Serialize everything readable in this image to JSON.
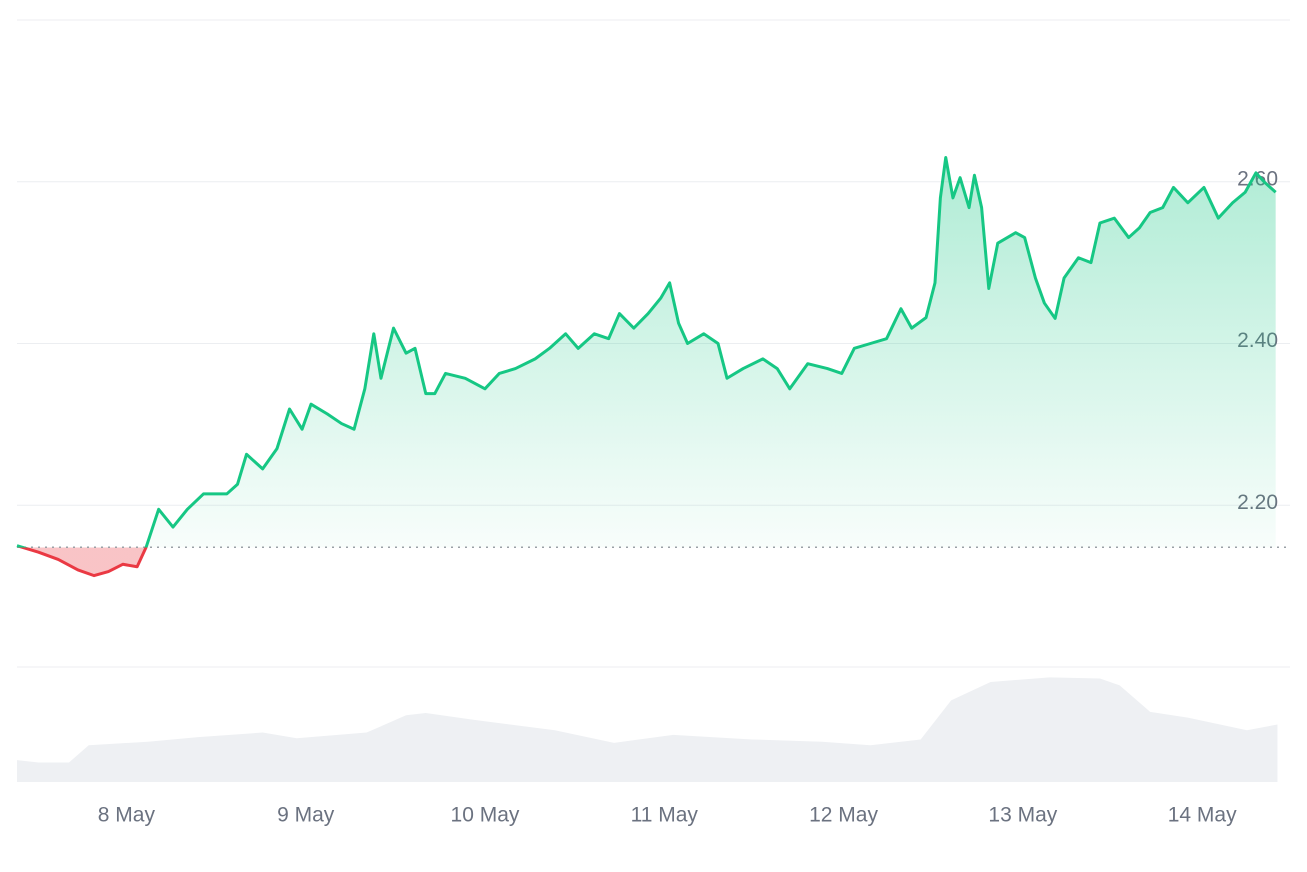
{
  "chart_data": {
    "type": "line",
    "xlim": [
      7.39,
      14.49
    ],
    "xticks": [
      {
        "value": 8,
        "label": "8 May"
      },
      {
        "value": 9,
        "label": "9 May"
      },
      {
        "value": 10,
        "label": "10 May"
      },
      {
        "value": 11,
        "label": "11 May"
      },
      {
        "value": 12,
        "label": "12 May"
      },
      {
        "value": 13,
        "label": "13 May"
      },
      {
        "value": 14,
        "label": "14 May"
      }
    ],
    "ylim": [
      2.0,
      2.8
    ],
    "yticks": [
      {
        "value": 2.2,
        "label": "2.20"
      },
      {
        "value": 2.4,
        "label": "2.40"
      },
      {
        "value": 2.6,
        "label": "2.60"
      }
    ],
    "grid": true,
    "baseline": 2.148,
    "up_color": "#16c784",
    "down_color": "#ea3943",
    "x": [
      7.39,
      7.51,
      7.62,
      7.73,
      7.82,
      7.9,
      7.98,
      8.06,
      8.11,
      8.18,
      8.26,
      8.34,
      8.43,
      8.56,
      8.62,
      8.67,
      8.76,
      8.84,
      8.91,
      8.98,
      9.03,
      9.12,
      9.2,
      9.27,
      9.33,
      9.38,
      9.42,
      9.49,
      9.56,
      9.61,
      9.67,
      9.72,
      9.78,
      9.89,
      10.0,
      10.08,
      10.17,
      10.28,
      10.36,
      10.45,
      10.52,
      10.61,
      10.69,
      10.75,
      10.83,
      10.91,
      10.98,
      11.03,
      11.08,
      11.13,
      11.22,
      11.3,
      11.35,
      11.44,
      11.55,
      11.63,
      11.7,
      11.8,
      11.91,
      11.99,
      12.06,
      12.15,
      12.24,
      12.32,
      12.38,
      12.46,
      12.51,
      12.54,
      12.57,
      12.61,
      12.65,
      12.7,
      12.73,
      12.77,
      12.81,
      12.86,
      12.96,
      13.01,
      13.07,
      13.12,
      13.18,
      13.23,
      13.31,
      13.38,
      13.43,
      13.51,
      13.59,
      13.65,
      13.71,
      13.78,
      13.84,
      13.92,
      14.01,
      14.09,
      14.17,
      14.24,
      14.3,
      14.35,
      14.41
    ],
    "values": [
      2.15,
      2.142,
      2.133,
      2.12,
      2.113,
      2.118,
      2.127,
      2.124,
      2.148,
      2.195,
      2.173,
      2.195,
      2.214,
      2.214,
      2.226,
      2.263,
      2.245,
      2.27,
      2.319,
      2.294,
      2.325,
      2.313,
      2.301,
      2.294,
      2.344,
      2.412,
      2.357,
      2.419,
      2.388,
      2.394,
      2.338,
      2.338,
      2.363,
      2.357,
      2.344,
      2.363,
      2.369,
      2.381,
      2.394,
      2.412,
      2.394,
      2.412,
      2.406,
      2.437,
      2.419,
      2.437,
      2.456,
      2.475,
      2.425,
      2.4,
      2.412,
      2.4,
      2.357,
      2.369,
      2.381,
      2.369,
      2.344,
      2.375,
      2.369,
      2.363,
      2.394,
      2.4,
      2.406,
      2.443,
      2.419,
      2.432,
      2.475,
      2.58,
      2.63,
      2.58,
      2.605,
      2.568,
      2.608,
      2.568,
      2.468,
      2.524,
      2.537,
      2.531,
      2.481,
      2.45,
      2.431,
      2.481,
      2.506,
      2.5,
      2.549,
      2.555,
      2.531,
      2.543,
      2.562,
      2.568,
      2.593,
      2.574,
      2.593,
      2.555,
      2.574,
      2.587,
      2.611,
      2.599,
      2.587
    ],
    "volume": {
      "color": "#eef0f3",
      "ylim": [
        0,
        100
      ],
      "x": [
        7.39,
        7.51,
        7.68,
        7.79,
        8.12,
        8.4,
        8.76,
        8.95,
        9.34,
        9.56,
        9.67,
        9.94,
        10.39,
        10.72,
        11.05,
        11.49,
        11.88,
        12.15,
        12.43,
        12.6,
        12.82,
        13.15,
        13.43,
        13.54,
        13.71,
        13.92,
        14.25,
        14.42
      ],
      "values": [
        19,
        17,
        17,
        32,
        35,
        39,
        43,
        38,
        43,
        58,
        60,
        54,
        45,
        34,
        41,
        37,
        35,
        32,
        37,
        71,
        87,
        91,
        90,
        84,
        61,
        56,
        45,
        50
      ]
    }
  }
}
